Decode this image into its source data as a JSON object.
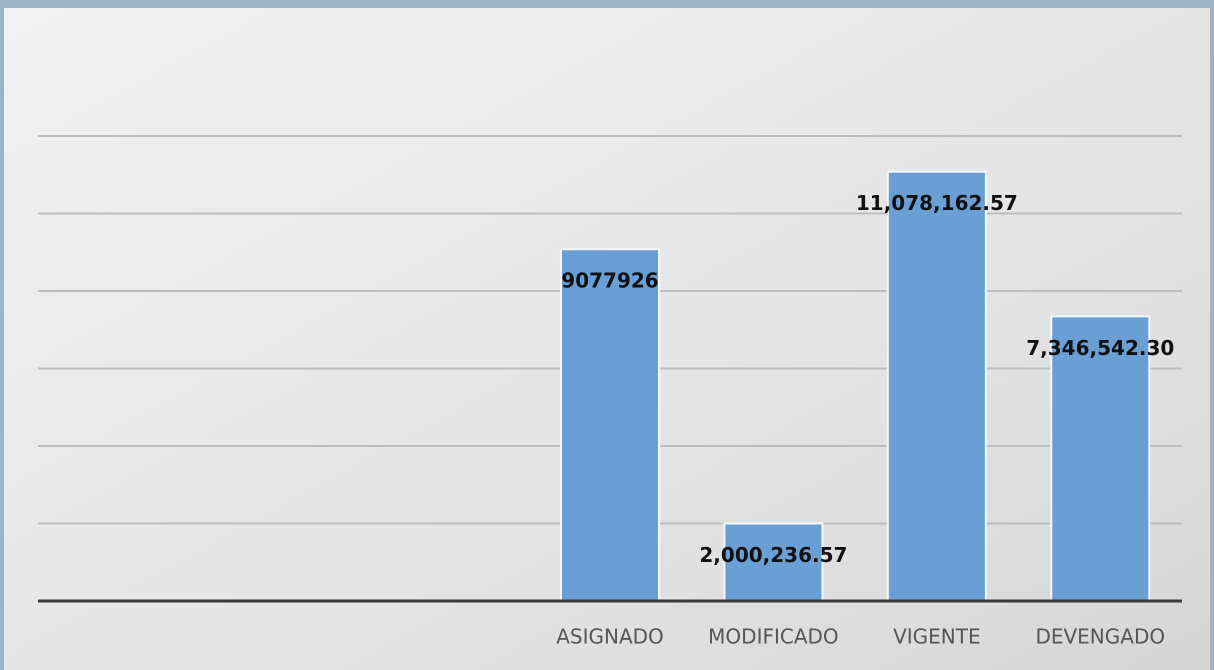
{
  "chart_data": {
    "type": "bar",
    "categories": [
      null,
      null,
      null,
      "ASIGNADO",
      "MODIFICADO",
      "VIGENTE",
      "DEVENGADO"
    ],
    "values": [
      null,
      null,
      null,
      9077926,
      2000236.57,
      11078162.57,
      7346542.3
    ],
    "value_labels": [
      null,
      null,
      null,
      "9077926",
      "2,000,236.57",
      "11,078,162.57",
      "7,346,542.30"
    ],
    "color": "#6a9fd6",
    "ylim": [
      0,
      12000000
    ],
    "yticks": [
      0,
      2000000,
      4000000,
      6000000,
      8000000,
      10000000,
      12000000
    ],
    "grid": true
  }
}
